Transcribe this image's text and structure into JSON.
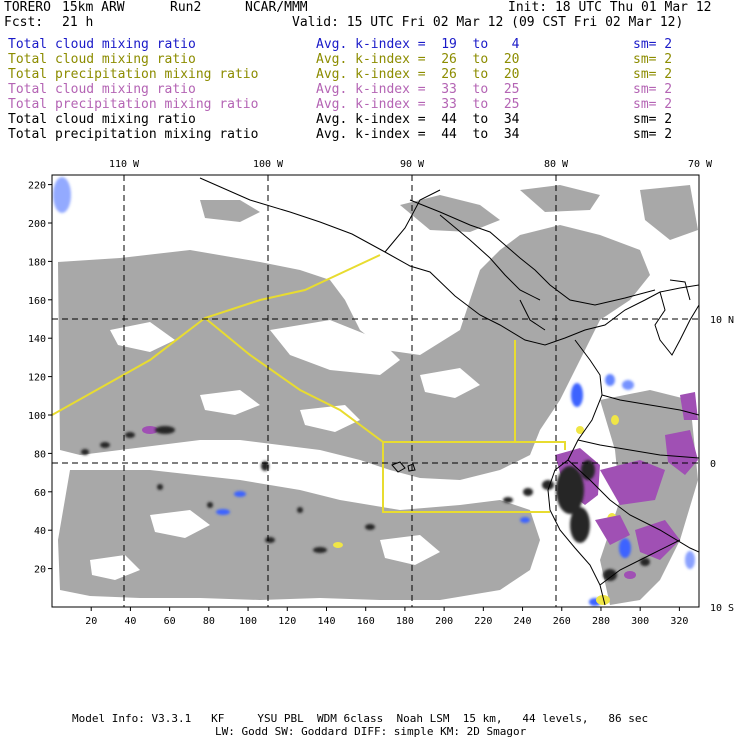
{
  "header": {
    "model": "TORERO",
    "resolution": "15km ARW",
    "run": "Run2",
    "org": "NCAR/MMM",
    "init": "Init: 18 UTC Thu 01 Mar 12",
    "fcst_label": "Fcst:",
    "fcst_value": "21 h",
    "valid": "Valid: 15 UTC Fri 02 Mar 12 (09 CST Fri 02 Mar 12)"
  },
  "legend": [
    {
      "field": "Total cloud mixing ratio",
      "k": "Avg. k-index =  19  to   4",
      "sm": "sm= 2",
      "color": "#1a1ac8"
    },
    {
      "field": "Total cloud mixing ratio",
      "k": "Avg. k-index =  26  to  20",
      "sm": "sm= 2",
      "color": "#8c8c00"
    },
    {
      "field": "Total precipitation mixing ratio",
      "k": "Avg. k-index =  26  to  20",
      "sm": "sm= 2",
      "color": "#8c8c00"
    },
    {
      "field": "Total cloud mixing ratio",
      "k": "Avg. k-index =  33  to  25",
      "sm": "sm= 2",
      "color": "#b464b4"
    },
    {
      "field": "Total precipitation mixing ratio",
      "k": "Avg. k-index =  33  to  25",
      "sm": "sm= 2",
      "color": "#b464b4"
    },
    {
      "field": "Total cloud mixing ratio",
      "k": "Avg. k-index =  44  to  34",
      "sm": "sm= 2",
      "color": "#000000"
    },
    {
      "field": "Total precipitation mixing ratio",
      "k": "Avg. k-index =  44  to  34",
      "sm": "sm= 2",
      "color": "#000000"
    }
  ],
  "map": {
    "lon_labels": [
      "110 W",
      "100 W",
      "90 W",
      "80 W",
      "70 W"
    ],
    "lat_labels": [
      "10 N",
      "0",
      "10 S"
    ],
    "x_ticks": [
      20,
      40,
      60,
      80,
      100,
      120,
      140,
      160,
      180,
      200,
      220,
      240,
      260,
      280,
      300,
      320
    ],
    "y_ticks": [
      20,
      40,
      60,
      80,
      100,
      120,
      140,
      160,
      180,
      200,
      220
    ],
    "x_range": [
      0,
      330
    ],
    "y_range": [
      0,
      225
    ],
    "colors": {
      "cloud_gray": "#a8a8a8",
      "blue": "#3c64ff",
      "yellow": "#f0e646",
      "purple": "#a050b4",
      "black": "#282828",
      "boundary_yellow": "#e8dc30"
    }
  },
  "footer": {
    "line1": "Model Info: V3.3.1   KF     YSU PBL  WDM 6class  Noah LSM  15 km,   44 levels,   86 sec",
    "line2": "LW: Godd SW: Goddard DIFF: simple KM: 2D Smagor"
  }
}
